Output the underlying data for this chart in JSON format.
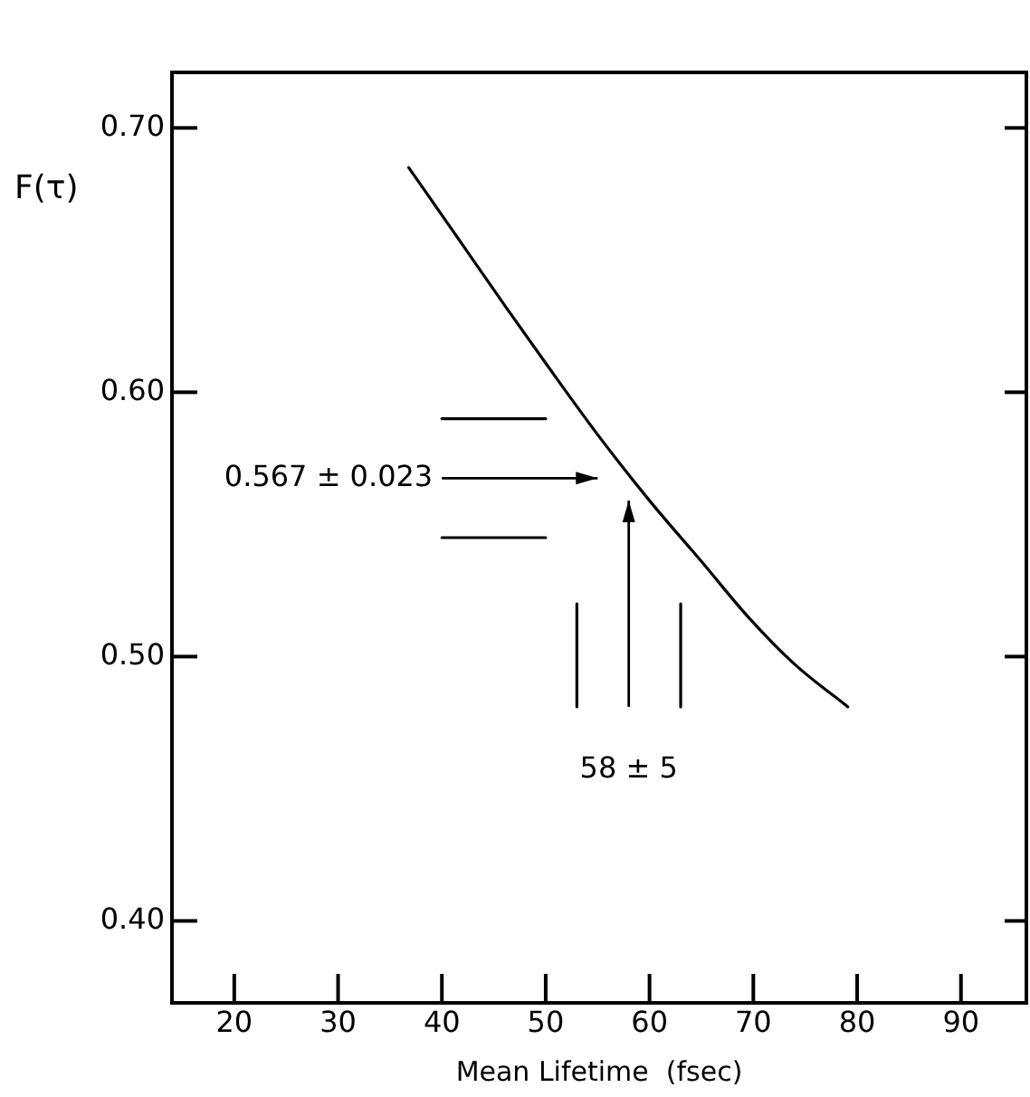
{
  "chart_data": {
    "type": "line",
    "xlabel": "Mean Lifetime  (fsec)",
    "ylabel": "F(τ)",
    "xlim": [
      14,
      96.3
    ],
    "ylim": [
      0.369,
      0.721
    ],
    "xticks": [
      20,
      30,
      40,
      50,
      60,
      70,
      80,
      90
    ],
    "yticks": [
      {
        "value": 0.4,
        "label": "0.40"
      },
      {
        "value": 0.5,
        "label": "0.50"
      },
      {
        "value": 0.6,
        "label": "0.60"
      },
      {
        "value": 0.7,
        "label": "0.70"
      }
    ],
    "grid": false,
    "legend": false,
    "marker": "none",
    "line_style": "solid",
    "series": [
      {
        "color": "#000000",
        "x": [
          36.8,
          41.6,
          46.2,
          50,
          55,
          60,
          65,
          69.5,
          74,
          79.1
        ],
        "values": [
          0.685,
          0.658,
          0.632,
          0.611,
          0.584,
          0.559,
          0.536,
          0.515,
          0.497,
          0.481
        ]
      },
      {
        "color": "#000000",
        "x": [
          40,
          50
        ],
        "values": [
          0.59,
          0.59
        ]
      },
      {
        "color": "#000000",
        "x": [
          40,
          50
        ],
        "values": [
          0.545,
          0.545
        ]
      },
      {
        "color": "#000000",
        "x": [
          53,
          53
        ],
        "values": [
          0.52,
          0.481
        ]
      },
      {
        "color": "#000000",
        "x": [
          63,
          63
        ],
        "values": [
          0.52,
          0.481
        ]
      }
    ],
    "annotations": [
      "0.567 ± 0.023",
      "58 ± 5"
    ]
  }
}
